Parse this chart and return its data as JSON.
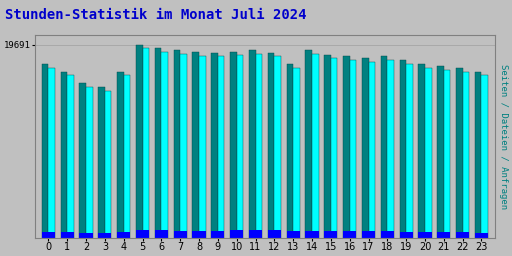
{
  "title": "Stunden-Statistik im Monat Juli 2024",
  "title_color": "#0000cc",
  "title_fontsize": 10,
  "hours": [
    0,
    1,
    2,
    3,
    4,
    5,
    6,
    7,
    8,
    9,
    10,
    11,
    12,
    13,
    14,
    15,
    16,
    17,
    18,
    19,
    20,
    21,
    22,
    23
  ],
  "seiten_values": [
    880,
    840,
    780,
    760,
    840,
    980,
    960,
    950,
    940,
    940,
    945,
    950,
    940,
    880,
    950,
    930,
    920,
    910,
    920,
    900,
    880,
    870,
    860,
    840
  ],
  "dateien_values": [
    900,
    860,
    800,
    780,
    860,
    1000,
    980,
    970,
    960,
    958,
    963,
    970,
    958,
    900,
    970,
    948,
    940,
    930,
    940,
    918,
    898,
    888,
    878,
    858
  ],
  "anfragen_values": [
    30,
    28,
    25,
    24,
    27,
    40,
    38,
    36,
    37,
    36,
    38,
    40,
    39,
    32,
    37,
    35,
    34,
    33,
    35,
    31,
    29,
    28,
    27,
    26
  ],
  "bar_color_seiten": "#00ffff",
  "bar_color_dateien": "#008080",
  "bar_color_anfragen": "#0000ff",
  "bg_color": "#c0c0c0",
  "plot_bg_color": "#c0c0c0",
  "ylabel2_color": "#008080",
  "ymax": 1050,
  "ytick_value": 1000,
  "ytick_label": "19691",
  "ylabel_right": "Seiten / Dateien / Anfragen",
  "bar_width": 0.35,
  "xlabel_fontsize": 7,
  "ylabel_fontsize": 6.5
}
